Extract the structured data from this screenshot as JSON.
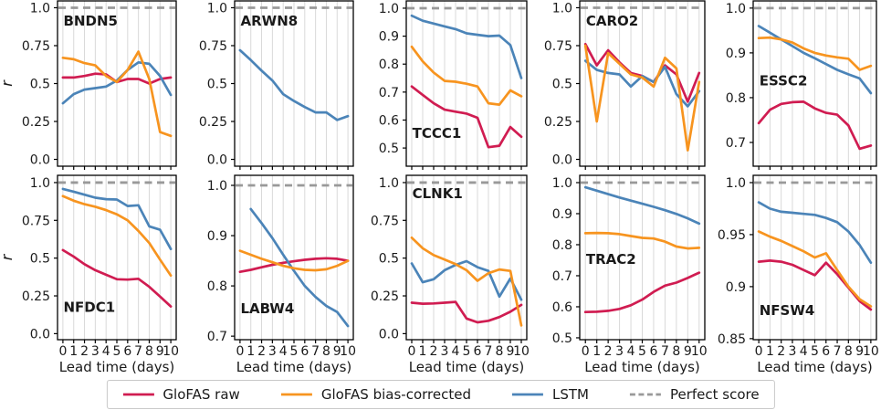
{
  "figure": {
    "xlabel": "Lead time (days)",
    "ylabel": "r",
    "x_tick_labels": [
      "0",
      "1",
      "2",
      "3",
      "4",
      "5",
      "6",
      "7",
      "8",
      "9",
      "10"
    ],
    "x_tick_values": [
      0,
      1,
      2,
      3,
      4,
      5,
      6,
      7,
      8,
      9,
      10
    ],
    "xlim": [
      -0.5,
      10.5
    ],
    "grid": "vertical",
    "legend_position": "bottom-center"
  },
  "colors": {
    "glofas_raw": "#d01c51",
    "glofas_bias": "#f7941f",
    "lstm": "#4b84b8",
    "perfect": "#999999",
    "grid": "#d9d9d9",
    "spine": "#000000",
    "text": "#1a1a1a"
  },
  "legend": {
    "items": [
      {
        "key": "glofas_raw",
        "label": "GloFAS raw",
        "style": "solid"
      },
      {
        "key": "glofas_bias",
        "label": "GloFAS bias-corrected",
        "style": "solid"
      },
      {
        "key": "lstm",
        "label": "LSTM",
        "style": "solid"
      },
      {
        "key": "perfect",
        "label": "Perfect score",
        "style": "dashed"
      }
    ]
  },
  "chart_data": [
    {
      "type": "line",
      "title": "BNDN5",
      "row": 0,
      "col": 0,
      "ylim": [
        -0.045,
        1.045
      ],
      "ytick_values": [
        0.0,
        0.25,
        0.5,
        0.75,
        1.0
      ],
      "ytick_labels": [
        "0.0",
        "0.25",
        "0.5",
        "0.75",
        "1.0"
      ],
      "perfect_score": 1.0,
      "label_frac": {
        "x": 0.05,
        "y": 0.15
      },
      "series": [
        {
          "key": "glofas_raw",
          "name": "GloFAS raw",
          "values": [
            0.54,
            0.54,
            0.55,
            0.565,
            0.56,
            0.51,
            0.53,
            0.53,
            0.5,
            0.53,
            0.54
          ]
        },
        {
          "key": "glofas_bias",
          "name": "GloFAS bias-corrected",
          "values": [
            0.67,
            0.66,
            0.635,
            0.62,
            0.55,
            0.51,
            0.59,
            0.71,
            0.53,
            0.18,
            0.155
          ]
        },
        {
          "key": "lstm",
          "name": "LSTM",
          "values": [
            0.37,
            0.43,
            0.46,
            0.47,
            0.48,
            0.52,
            0.59,
            0.64,
            0.63,
            0.55,
            0.425
          ]
        }
      ]
    },
    {
      "type": "line",
      "title": "ARWN8",
      "row": 0,
      "col": 1,
      "ylim": [
        -0.045,
        1.045
      ],
      "ytick_values": [
        0.0,
        0.25,
        0.5,
        0.75,
        1.0
      ],
      "ytick_labels": [
        "0.0",
        "0.25",
        "0.5",
        "0.75",
        "1.0"
      ],
      "perfect_score": 1.0,
      "label_frac": {
        "x": 0.05,
        "y": 0.15
      },
      "series": [
        {
          "key": "lstm",
          "name": "LSTM",
          "values": [
            0.72,
            0.655,
            0.585,
            0.52,
            0.43,
            0.385,
            0.345,
            0.31,
            0.31,
            0.26,
            0.285
          ]
        }
      ]
    },
    {
      "type": "line",
      "title": "TCCC1",
      "row": 0,
      "col": 2,
      "ylim": [
        0.435,
        1.026
      ],
      "ytick_values": [
        0.5,
        0.6,
        0.7,
        0.8,
        0.9,
        1.0
      ],
      "ytick_labels": [
        "0.5",
        "0.6",
        "0.7",
        "0.8",
        "0.9",
        "1.0"
      ],
      "perfect_score": 1.0,
      "label_frac": {
        "x": 0.05,
        "y": 0.83
      },
      "series": [
        {
          "key": "glofas_raw",
          "name": "GloFAS raw",
          "values": [
            0.72,
            0.69,
            0.66,
            0.637,
            0.63,
            0.623,
            0.608,
            0.503,
            0.508,
            0.575,
            0.54
          ]
        },
        {
          "key": "glofas_bias",
          "name": "GloFAS bias-corrected",
          "values": [
            0.862,
            0.81,
            0.77,
            0.74,
            0.737,
            0.73,
            0.72,
            0.66,
            0.655,
            0.706,
            0.685
          ]
        },
        {
          "key": "lstm",
          "name": "LSTM",
          "values": [
            0.973,
            0.955,
            0.945,
            0.935,
            0.925,
            0.91,
            0.905,
            0.9,
            0.902,
            0.868,
            0.75
          ]
        }
      ]
    },
    {
      "type": "line",
      "title": "CARO2",
      "row": 0,
      "col": 3,
      "ylim": [
        -0.045,
        1.045
      ],
      "ytick_values": [
        0.0,
        0.25,
        0.5,
        0.75,
        1.0
      ],
      "ytick_labels": [
        "0.0",
        "0.25",
        "0.5",
        "0.75",
        "1.0"
      ],
      "perfect_score": 1.0,
      "label_frac": {
        "x": 0.05,
        "y": 0.15
      },
      "series": [
        {
          "key": "glofas_raw",
          "name": "GloFAS raw",
          "values": [
            0.76,
            0.62,
            0.72,
            0.64,
            0.57,
            0.55,
            0.51,
            0.62,
            0.56,
            0.38,
            0.57
          ]
        },
        {
          "key": "glofas_bias",
          "name": "GloFAS bias-corrected",
          "values": [
            0.75,
            0.25,
            0.7,
            0.63,
            0.56,
            0.54,
            0.48,
            0.67,
            0.6,
            0.06,
            0.51
          ]
        },
        {
          "key": "lstm",
          "name": "LSTM",
          "values": [
            0.65,
            0.59,
            0.57,
            0.56,
            0.48,
            0.55,
            0.51,
            0.61,
            0.43,
            0.35,
            0.45
          ]
        }
      ]
    },
    {
      "type": "line",
      "title": "ESSC2",
      "row": 0,
      "col": 4,
      "ylim": [
        0.647,
        1.016
      ],
      "ytick_values": [
        0.7,
        0.8,
        0.9,
        1.0
      ],
      "ytick_labels": [
        "0.7",
        "0.8",
        "0.9",
        "1.0"
      ],
      "perfect_score": 1.0,
      "label_frac": {
        "x": 0.05,
        "y": 0.51
      },
      "series": [
        {
          "key": "glofas_raw",
          "name": "GloFAS raw",
          "values": [
            0.743,
            0.773,
            0.786,
            0.79,
            0.791,
            0.776,
            0.766,
            0.762,
            0.738,
            0.686,
            0.693
          ]
        },
        {
          "key": "glofas_bias",
          "name": "GloFAS bias-corrected",
          "values": [
            0.933,
            0.934,
            0.93,
            0.923,
            0.91,
            0.9,
            0.894,
            0.89,
            0.887,
            0.862,
            0.871
          ]
        },
        {
          "key": "lstm",
          "name": "LSTM",
          "values": [
            0.96,
            0.945,
            0.93,
            0.915,
            0.9,
            0.888,
            0.875,
            0.862,
            0.852,
            0.843,
            0.81
          ]
        }
      ]
    },
    {
      "type": "line",
      "title": "NFDC1",
      "row": 1,
      "col": 0,
      "ylim": [
        -0.04,
        1.048
      ],
      "ytick_values": [
        0.0,
        0.25,
        0.5,
        0.75,
        1.0
      ],
      "ytick_labels": [
        "0.0",
        "0.25",
        "0.5",
        "0.75",
        "1.0"
      ],
      "perfect_score": 1.0,
      "label_frac": {
        "x": 0.05,
        "y": 0.83
      },
      "series": [
        {
          "key": "glofas_raw",
          "name": "GloFAS raw",
          "values": [
            0.553,
            0.51,
            0.46,
            0.42,
            0.39,
            0.36,
            0.358,
            0.363,
            0.31,
            0.245,
            0.18
          ]
        },
        {
          "key": "glofas_bias",
          "name": "GloFAS bias-corrected",
          "values": [
            0.91,
            0.88,
            0.857,
            0.84,
            0.818,
            0.79,
            0.75,
            0.68,
            0.6,
            0.49,
            0.385
          ]
        },
        {
          "key": "lstm",
          "name": "LSTM",
          "values": [
            0.958,
            0.94,
            0.92,
            0.9,
            0.89,
            0.888,
            0.845,
            0.85,
            0.71,
            0.688,
            0.56
          ]
        }
      ]
    },
    {
      "type": "line",
      "title": "LABW4",
      "row": 1,
      "col": 1,
      "ylim": [
        0.693,
        1.02
      ],
      "ytick_values": [
        0.7,
        0.8,
        0.9,
        1.0
      ],
      "ytick_labels": [
        "0.7",
        "0.8",
        "0.9",
        "1.0"
      ],
      "perfect_score": 1.0,
      "label_frac": {
        "x": 0.05,
        "y": 0.84
      },
      "series": [
        {
          "key": "glofas_raw",
          "name": "GloFAS raw",
          "values": [
            0.828,
            0.832,
            0.837,
            0.842,
            0.846,
            0.849,
            0.852,
            0.854,
            0.855,
            0.854,
            0.85
          ]
        },
        {
          "key": "glofas_bias",
          "name": "GloFAS bias-corrected",
          "values": [
            0.87,
            0.862,
            0.854,
            0.847,
            0.84,
            0.835,
            0.832,
            0.831,
            0.833,
            0.84,
            0.85
          ]
        },
        {
          "key": "lstm",
          "name": "LSTM",
          "x_start": 1,
          "values": [
            0.953,
            0.925,
            0.895,
            0.862,
            0.83,
            0.8,
            0.778,
            0.76,
            0.748,
            0.72
          ]
        }
      ]
    },
    {
      "type": "line",
      "title": "CLNK1",
      "row": 1,
      "col": 2,
      "ylim": [
        -0.04,
        1.048
      ],
      "ytick_values": [
        0.0,
        0.25,
        0.5,
        0.75,
        1.0
      ],
      "ytick_labels": [
        "0.0",
        "0.25",
        "0.5",
        "0.75",
        "1.0"
      ],
      "perfect_score": 1.0,
      "label_frac": {
        "x": 0.05,
        "y": 0.14
      },
      "series": [
        {
          "key": "glofas_raw",
          "name": "GloFAS raw",
          "values": [
            0.205,
            0.198,
            0.2,
            0.205,
            0.21,
            0.1,
            0.075,
            0.085,
            0.11,
            0.145,
            0.19
          ]
        },
        {
          "key": "glofas_bias",
          "name": "GloFAS bias-corrected",
          "values": [
            0.635,
            0.565,
            0.52,
            0.49,
            0.46,
            0.42,
            0.35,
            0.4,
            0.425,
            0.415,
            0.054
          ]
        },
        {
          "key": "lstm",
          "name": "LSTM",
          "values": [
            0.465,
            0.34,
            0.36,
            0.42,
            0.455,
            0.48,
            0.44,
            0.415,
            0.245,
            0.365,
            0.225
          ]
        }
      ]
    },
    {
      "type": "line",
      "title": "TRAC2",
      "row": 1,
      "col": 3,
      "ylim": [
        0.494,
        1.0235
      ],
      "ytick_values": [
        0.5,
        0.6,
        0.7,
        0.8,
        0.9,
        1.0
      ],
      "ytick_labels": [
        "0.5",
        "0.6",
        "0.7",
        "0.8",
        "0.9",
        "1.0"
      ],
      "perfect_score": 1.0,
      "label_frac": {
        "x": 0.05,
        "y": 0.54
      },
      "series": [
        {
          "key": "glofas_raw",
          "name": "GloFAS raw",
          "values": [
            0.583,
            0.584,
            0.587,
            0.593,
            0.605,
            0.623,
            0.648,
            0.668,
            0.678,
            0.693,
            0.71
          ]
        },
        {
          "key": "glofas_bias",
          "name": "GloFAS bias-corrected",
          "values": [
            0.837,
            0.838,
            0.837,
            0.834,
            0.828,
            0.822,
            0.82,
            0.81,
            0.794,
            0.788,
            0.79
          ]
        },
        {
          "key": "lstm",
          "name": "LSTM",
          "values": [
            0.985,
            0.974,
            0.963,
            0.952,
            0.942,
            0.932,
            0.922,
            0.911,
            0.899,
            0.885,
            0.868
          ]
        }
      ]
    },
    {
      "type": "line",
      "title": "NFSW4",
      "row": 1,
      "col": 4,
      "ylim": [
        0.849,
        1.007
      ],
      "ytick_values": [
        0.85,
        0.9,
        0.95,
        1.0
      ],
      "ytick_labels": [
        "0.85",
        "0.9",
        "0.95",
        "1.0"
      ],
      "perfect_score": 1.0,
      "label_frac": {
        "x": 0.05,
        "y": 0.85
      },
      "series": [
        {
          "key": "glofas_raw",
          "name": "GloFAS raw",
          "values": [
            0.924,
            0.925,
            0.924,
            0.921,
            0.916,
            0.911,
            0.923,
            0.912,
            0.899,
            0.886,
            0.878
          ]
        },
        {
          "key": "glofas_bias",
          "name": "GloFAS bias-corrected",
          "values": [
            0.953,
            0.948,
            0.944,
            0.939,
            0.934,
            0.928,
            0.932,
            0.916,
            0.9,
            0.888,
            0.881
          ]
        },
        {
          "key": "lstm",
          "name": "LSTM",
          "values": [
            0.981,
            0.975,
            0.972,
            0.971,
            0.97,
            0.969,
            0.966,
            0.962,
            0.953,
            0.94,
            0.923
          ]
        }
      ]
    }
  ]
}
